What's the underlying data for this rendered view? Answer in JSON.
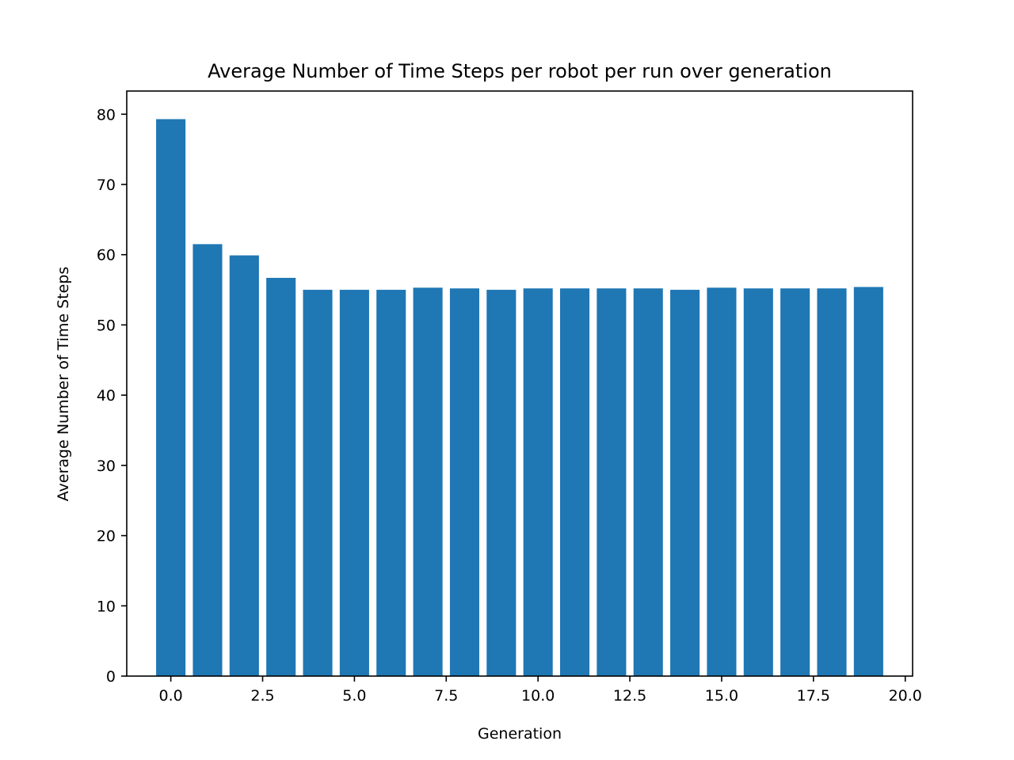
{
  "chart_data": {
    "type": "bar",
    "title": "Average Number of Time Steps per robot per run over generation",
    "xlabel": "Generation",
    "ylabel": "Average Number of Time Steps",
    "x": [
      0,
      1,
      2,
      3,
      4,
      5,
      6,
      7,
      8,
      9,
      10,
      11,
      12,
      13,
      14,
      15,
      16,
      17,
      18,
      19
    ],
    "values": [
      79.3,
      61.5,
      59.9,
      56.7,
      55.0,
      55.0,
      55.0,
      55.3,
      55.2,
      55.0,
      55.2,
      55.2,
      55.2,
      55.2,
      55.0,
      55.3,
      55.2,
      55.2,
      55.2,
      55.4
    ],
    "bar_width": 0.8,
    "xlim": [
      -1.2,
      20.2
    ],
    "ylim": [
      0,
      83.3
    ],
    "xticks": [
      0.0,
      2.5,
      5.0,
      7.5,
      10.0,
      12.5,
      15.0,
      17.5,
      20.0
    ],
    "xtick_labels": [
      "0.0",
      "2.5",
      "5.0",
      "7.5",
      "10.0",
      "12.5",
      "15.0",
      "17.5",
      "20.0"
    ],
    "yticks": [
      0,
      10,
      20,
      30,
      40,
      50,
      60,
      70,
      80
    ],
    "ytick_labels": [
      "0",
      "10",
      "20",
      "30",
      "40",
      "50",
      "60",
      "70",
      "80"
    ],
    "grid": false,
    "legend": "none",
    "bar_color": "#1f77b4"
  }
}
